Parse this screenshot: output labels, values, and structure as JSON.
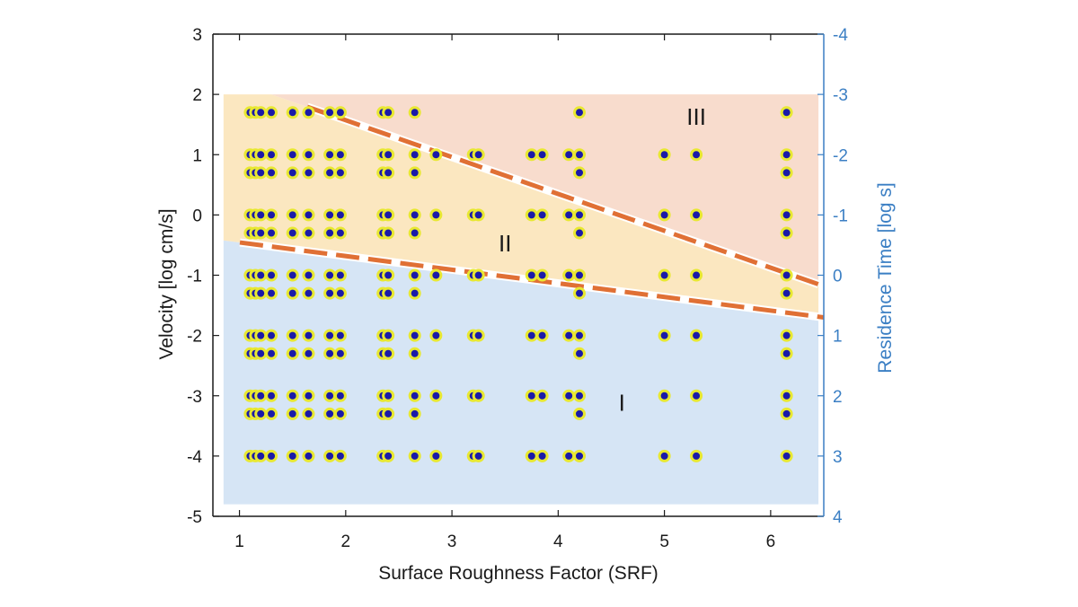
{
  "chart_data": {
    "type": "scatter",
    "xlabel": "Surface Roughness Factor (SRF)",
    "ylabel": "Velocity [log cm/s]",
    "y2label": "Residence Time [log s]",
    "xlim": [
      0.75,
      6.5
    ],
    "ylim": [
      -5,
      3
    ],
    "y2lim": [
      4,
      -4
    ],
    "x_ticks": [
      "1",
      "2",
      "3",
      "4",
      "5",
      "6"
    ],
    "y_ticks": [
      "3",
      "2",
      "1",
      "0",
      "-1",
      "-2",
      "-3",
      "-4",
      "-5"
    ],
    "y2_ticks": [
      "-4",
      "-3",
      "-2",
      "-1",
      "0",
      "1",
      "2",
      "3",
      "4"
    ],
    "y2_color": "#3b7fc4",
    "regions": [
      {
        "label": "I",
        "color": "#d6e5f5",
        "label_pos": [
          4.6,
          -3.15
        ]
      },
      {
        "label": "II",
        "color": "#fbe7c0",
        "label_pos": [
          3.5,
          -0.5
        ]
      },
      {
        "label": "III",
        "color": "#f8dccd",
        "label_pos": [
          5.3,
          1.6
        ]
      }
    ],
    "boundaries": [
      {
        "name": "lower",
        "color": "#e07035",
        "points": [
          [
            0.75,
            -0.4
          ],
          [
            6.5,
            -1.7
          ]
        ]
      },
      {
        "name": "upper",
        "color": "#e07035",
        "points": [
          [
            1.3,
            2.0
          ],
          [
            6.45,
            -1.15
          ]
        ]
      }
    ],
    "marker": {
      "fill": "#1a1aa8",
      "edge": "#e8e832"
    },
    "series": [
      {
        "values": [
          [
            1.1,
            1.7
          ],
          [
            1.15,
            1.7
          ],
          [
            1.2,
            1.7
          ],
          [
            1.3,
            1.7
          ],
          [
            1.5,
            1.7
          ],
          [
            1.65,
            1.7
          ],
          [
            1.85,
            1.7
          ],
          [
            1.95,
            1.7
          ],
          [
            2.35,
            1.7
          ],
          [
            2.4,
            1.7
          ],
          [
            2.65,
            1.7
          ],
          [
            4.2,
            1.7
          ],
          [
            6.15,
            1.7
          ],
          [
            1.1,
            1.0
          ],
          [
            1.15,
            1.0
          ],
          [
            1.2,
            1.0
          ],
          [
            1.3,
            1.0
          ],
          [
            1.5,
            1.0
          ],
          [
            1.65,
            1.0
          ],
          [
            1.85,
            1.0
          ],
          [
            1.95,
            1.0
          ],
          [
            2.35,
            1.0
          ],
          [
            2.4,
            1.0
          ],
          [
            2.65,
            1.0
          ],
          [
            2.85,
            1.0
          ],
          [
            3.2,
            1.0
          ],
          [
            3.25,
            1.0
          ],
          [
            3.75,
            1.0
          ],
          [
            3.85,
            1.0
          ],
          [
            4.1,
            1.0
          ],
          [
            4.2,
            1.0
          ],
          [
            5.0,
            1.0
          ],
          [
            5.3,
            1.0
          ],
          [
            6.15,
            1.0
          ],
          [
            1.1,
            0.7
          ],
          [
            1.15,
            0.7
          ],
          [
            1.2,
            0.7
          ],
          [
            1.3,
            0.7
          ],
          [
            1.5,
            0.7
          ],
          [
            1.65,
            0.7
          ],
          [
            1.85,
            0.7
          ],
          [
            1.95,
            0.7
          ],
          [
            2.35,
            0.7
          ],
          [
            2.4,
            0.7
          ],
          [
            2.65,
            0.7
          ],
          [
            4.2,
            0.7
          ],
          [
            6.15,
            0.7
          ],
          [
            1.1,
            0.0
          ],
          [
            1.15,
            0.0
          ],
          [
            1.2,
            0.0
          ],
          [
            1.3,
            0.0
          ],
          [
            1.5,
            0.0
          ],
          [
            1.65,
            0.0
          ],
          [
            1.85,
            0.0
          ],
          [
            1.95,
            0.0
          ],
          [
            2.35,
            0.0
          ],
          [
            2.4,
            0.0
          ],
          [
            2.65,
            0.0
          ],
          [
            2.85,
            0.0
          ],
          [
            3.2,
            0.0
          ],
          [
            3.25,
            0.0
          ],
          [
            3.75,
            0.0
          ],
          [
            3.85,
            0.0
          ],
          [
            4.1,
            0.0
          ],
          [
            4.2,
            0.0
          ],
          [
            5.0,
            0.0
          ],
          [
            5.3,
            0.0
          ],
          [
            6.15,
            0.0
          ],
          [
            1.1,
            -0.3
          ],
          [
            1.15,
            -0.3
          ],
          [
            1.2,
            -0.3
          ],
          [
            1.3,
            -0.3
          ],
          [
            1.5,
            -0.3
          ],
          [
            1.65,
            -0.3
          ],
          [
            1.85,
            -0.3
          ],
          [
            1.95,
            -0.3
          ],
          [
            2.35,
            -0.3
          ],
          [
            2.4,
            -0.3
          ],
          [
            2.65,
            -0.3
          ],
          [
            4.2,
            -0.3
          ],
          [
            6.15,
            -0.3
          ],
          [
            1.1,
            -1.0
          ],
          [
            1.15,
            -1.0
          ],
          [
            1.2,
            -1.0
          ],
          [
            1.3,
            -1.0
          ],
          [
            1.5,
            -1.0
          ],
          [
            1.65,
            -1.0
          ],
          [
            1.85,
            -1.0
          ],
          [
            1.95,
            -1.0
          ],
          [
            2.35,
            -1.0
          ],
          [
            2.4,
            -1.0
          ],
          [
            2.65,
            -1.0
          ],
          [
            2.85,
            -1.0
          ],
          [
            3.2,
            -1.0
          ],
          [
            3.25,
            -1.0
          ],
          [
            3.75,
            -1.0
          ],
          [
            3.85,
            -1.0
          ],
          [
            4.1,
            -1.0
          ],
          [
            4.2,
            -1.0
          ],
          [
            5.0,
            -1.0
          ],
          [
            5.3,
            -1.0
          ],
          [
            6.15,
            -1.0
          ],
          [
            1.1,
            -1.3
          ],
          [
            1.15,
            -1.3
          ],
          [
            1.2,
            -1.3
          ],
          [
            1.3,
            -1.3
          ],
          [
            1.5,
            -1.3
          ],
          [
            1.65,
            -1.3
          ],
          [
            1.85,
            -1.3
          ],
          [
            1.95,
            -1.3
          ],
          [
            2.35,
            -1.3
          ],
          [
            2.4,
            -1.3
          ],
          [
            2.65,
            -1.3
          ],
          [
            4.2,
            -1.3
          ],
          [
            6.15,
            -1.3
          ],
          [
            1.1,
            -2.0
          ],
          [
            1.15,
            -2.0
          ],
          [
            1.2,
            -2.0
          ],
          [
            1.3,
            -2.0
          ],
          [
            1.5,
            -2.0
          ],
          [
            1.65,
            -2.0
          ],
          [
            1.85,
            -2.0
          ],
          [
            1.95,
            -2.0
          ],
          [
            2.35,
            -2.0
          ],
          [
            2.4,
            -2.0
          ],
          [
            2.65,
            -2.0
          ],
          [
            2.85,
            -2.0
          ],
          [
            3.2,
            -2.0
          ],
          [
            3.25,
            -2.0
          ],
          [
            3.75,
            -2.0
          ],
          [
            3.85,
            -2.0
          ],
          [
            4.1,
            -2.0
          ],
          [
            4.2,
            -2.0
          ],
          [
            5.0,
            -2.0
          ],
          [
            5.3,
            -2.0
          ],
          [
            6.15,
            -2.0
          ],
          [
            1.1,
            -2.3
          ],
          [
            1.15,
            -2.3
          ],
          [
            1.2,
            -2.3
          ],
          [
            1.3,
            -2.3
          ],
          [
            1.5,
            -2.3
          ],
          [
            1.65,
            -2.3
          ],
          [
            1.85,
            -2.3
          ],
          [
            1.95,
            -2.3
          ],
          [
            2.35,
            -2.3
          ],
          [
            2.4,
            -2.3
          ],
          [
            2.65,
            -2.3
          ],
          [
            4.2,
            -2.3
          ],
          [
            6.15,
            -2.3
          ],
          [
            1.1,
            -3.0
          ],
          [
            1.15,
            -3.0
          ],
          [
            1.2,
            -3.0
          ],
          [
            1.3,
            -3.0
          ],
          [
            1.5,
            -3.0
          ],
          [
            1.65,
            -3.0
          ],
          [
            1.85,
            -3.0
          ],
          [
            1.95,
            -3.0
          ],
          [
            2.35,
            -3.0
          ],
          [
            2.4,
            -3.0
          ],
          [
            2.65,
            -3.0
          ],
          [
            2.85,
            -3.0
          ],
          [
            3.2,
            -3.0
          ],
          [
            3.25,
            -3.0
          ],
          [
            3.75,
            -3.0
          ],
          [
            3.85,
            -3.0
          ],
          [
            4.1,
            -3.0
          ],
          [
            4.2,
            -3.0
          ],
          [
            5.0,
            -3.0
          ],
          [
            5.3,
            -3.0
          ],
          [
            6.15,
            -3.0
          ],
          [
            1.1,
            -3.3
          ],
          [
            1.15,
            -3.3
          ],
          [
            1.2,
            -3.3
          ],
          [
            1.3,
            -3.3
          ],
          [
            1.5,
            -3.3
          ],
          [
            1.65,
            -3.3
          ],
          [
            1.85,
            -3.3
          ],
          [
            1.95,
            -3.3
          ],
          [
            2.35,
            -3.3
          ],
          [
            2.4,
            -3.3
          ],
          [
            2.65,
            -3.3
          ],
          [
            4.2,
            -3.3
          ],
          [
            6.15,
            -3.3
          ],
          [
            1.1,
            -4.0
          ],
          [
            1.15,
            -4.0
          ],
          [
            1.2,
            -4.0
          ],
          [
            1.3,
            -4.0
          ],
          [
            1.5,
            -4.0
          ],
          [
            1.65,
            -4.0
          ],
          [
            1.85,
            -4.0
          ],
          [
            1.95,
            -4.0
          ],
          [
            2.35,
            -4.0
          ],
          [
            2.4,
            -4.0
          ],
          [
            2.65,
            -4.0
          ],
          [
            2.85,
            -4.0
          ],
          [
            3.2,
            -4.0
          ],
          [
            3.25,
            -4.0
          ],
          [
            3.75,
            -4.0
          ],
          [
            3.85,
            -4.0
          ],
          [
            4.1,
            -4.0
          ],
          [
            4.2,
            -4.0
          ],
          [
            5.0,
            -4.0
          ],
          [
            5.3,
            -4.0
          ],
          [
            6.15,
            -4.0
          ]
        ]
      }
    ]
  }
}
